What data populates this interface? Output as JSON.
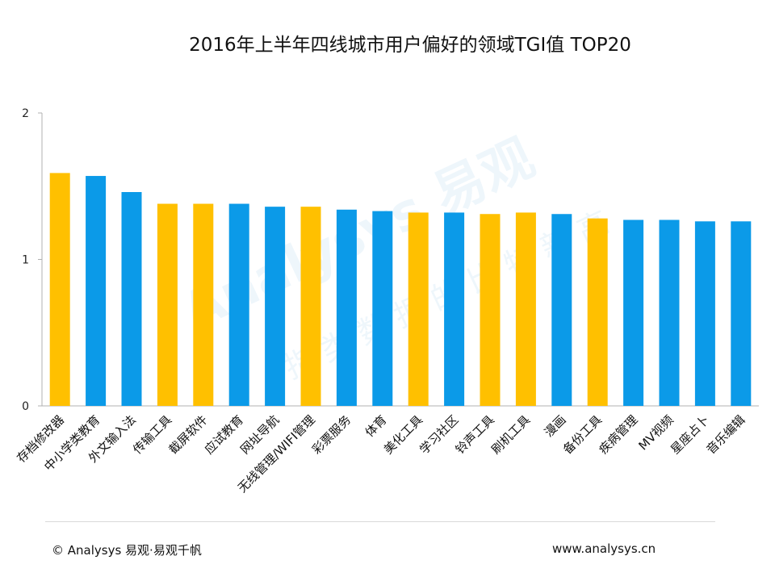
{
  "chart_data": {
    "type": "bar",
    "title": "2016年上半年四线城市用户偏好的领域TGI值 TOP20",
    "xlabel": "",
    "ylabel": "",
    "ylim": [
      0,
      2
    ],
    "yticks": [
      "0",
      "1",
      "2"
    ],
    "grid": false,
    "categories": [
      "存档修改器",
      "中小学类教育",
      "外文输入法",
      "传输工具",
      "截屏软件",
      "应试教育",
      "网址导航",
      "无线管理/WIFI管理",
      "彩票服务",
      "体育",
      "美化工具",
      "学习社区",
      "铃声工具",
      "刷机工具",
      "漫画",
      "备份工具",
      "疾病管理",
      "MV视频",
      "星座占卜",
      "音乐编辑"
    ],
    "values": [
      1.59,
      1.57,
      1.46,
      1.38,
      1.38,
      1.38,
      1.36,
      1.36,
      1.34,
      1.33,
      1.32,
      1.32,
      1.31,
      1.32,
      1.31,
      1.28,
      1.27,
      1.27,
      1.26,
      1.26
    ],
    "highlight": [
      true,
      false,
      false,
      true,
      true,
      false,
      false,
      true,
      false,
      false,
      true,
      false,
      true,
      true,
      false,
      true,
      false,
      false,
      false,
      false
    ],
    "colors": {
      "highlight": "#FFC000",
      "normal": "#0B9AE8",
      "axis": "#b0b0b0"
    }
  },
  "watermark": {
    "main": "Analysys 易观",
    "sub": "指 类 数 据 的 比 特 新 高"
  },
  "footer": {
    "left": "© Analysys 易观·易观千帆",
    "right": "www.analysys.cn"
  }
}
